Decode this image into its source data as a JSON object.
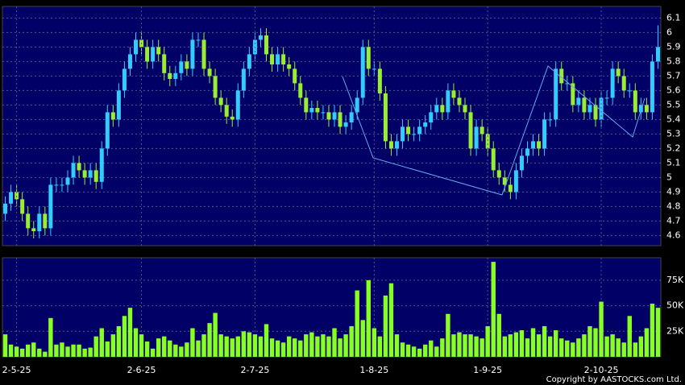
{
  "chart_data": [
    {
      "type": "candlestick",
      "open": [
        4.75,
        4.82,
        4.9,
        4.85,
        4.75,
        4.65,
        4.63,
        4.75,
        4.65,
        4.95,
        4.95,
        4.95,
        5.0,
        5.1,
        5.05,
        5.0,
        5.05,
        4.97,
        5.2,
        5.45,
        5.4,
        5.6,
        5.75,
        5.85,
        5.95,
        5.9,
        5.8,
        5.9,
        5.85,
        5.72,
        5.68,
        5.72,
        5.8,
        5.75,
        5.95,
        5.95,
        5.75,
        5.7,
        5.55,
        5.5,
        5.42,
        5.4,
        5.6,
        5.75,
        5.85,
        5.95,
        5.98,
        5.85,
        5.78,
        5.85,
        5.78,
        5.75,
        5.65,
        5.55,
        5.45,
        5.48,
        5.45,
        5.45,
        5.4,
        5.45,
        5.35,
        5.38,
        5.45,
        5.55,
        5.9,
        5.75,
        5.75,
        5.58,
        5.25,
        5.2,
        5.25,
        5.35,
        5.3,
        5.3,
        5.35,
        5.38,
        5.45,
        5.5,
        5.45,
        5.6,
        5.55,
        5.5,
        5.45,
        5.2,
        5.35,
        5.3,
        5.2,
        5.05,
        5.0,
        4.95,
        4.9,
        5.05,
        5.15,
        5.2,
        5.25,
        5.2,
        5.4,
        5.4,
        5.75,
        5.65,
        5.65,
        5.5,
        5.55,
        5.45,
        5.5,
        5.4,
        5.55,
        5.55,
        5.75,
        5.7,
        5.6,
        5.6,
        5.45,
        5.5,
        5.45,
        5.8
      ],
      "high": [
        4.87,
        4.95,
        4.95,
        4.9,
        4.8,
        4.7,
        4.8,
        4.8,
        5.0,
        5.0,
        5.0,
        5.05,
        5.15,
        5.15,
        5.1,
        5.1,
        5.1,
        5.25,
        5.5,
        5.5,
        5.65,
        5.8,
        5.9,
        6.0,
        6.0,
        5.95,
        5.95,
        5.95,
        5.9,
        5.77,
        5.77,
        5.85,
        5.85,
        6.0,
        6.0,
        6.0,
        5.8,
        5.75,
        5.6,
        5.55,
        5.47,
        5.65,
        5.8,
        5.9,
        6.0,
        6.03,
        6.03,
        5.9,
        5.9,
        5.9,
        5.83,
        5.8,
        5.7,
        5.6,
        5.53,
        5.53,
        5.5,
        5.5,
        5.5,
        5.5,
        5.43,
        5.5,
        5.6,
        5.95,
        5.95,
        5.8,
        5.8,
        5.63,
        5.3,
        5.3,
        5.4,
        5.4,
        5.35,
        5.4,
        5.43,
        5.5,
        5.55,
        5.55,
        5.65,
        5.65,
        5.6,
        5.55,
        5.5,
        5.4,
        5.4,
        5.35,
        5.25,
        5.1,
        5.05,
        5.0,
        5.1,
        5.2,
        5.25,
        5.3,
        5.3,
        5.45,
        5.45,
        5.8,
        5.8,
        5.7,
        5.7,
        5.6,
        5.6,
        5.55,
        5.55,
        5.6,
        5.6,
        5.8,
        5.8,
        5.75,
        5.65,
        5.65,
        5.55,
        5.55,
        5.85,
        6.05
      ],
      "low": [
        4.7,
        4.77,
        4.8,
        4.7,
        4.6,
        4.58,
        4.58,
        4.6,
        4.6,
        4.9,
        4.9,
        4.9,
        4.95,
        5.0,
        4.95,
        4.95,
        4.92,
        4.92,
        5.15,
        5.35,
        5.35,
        5.55,
        5.7,
        5.8,
        5.85,
        5.75,
        5.75,
        5.8,
        5.67,
        5.63,
        5.63,
        5.67,
        5.7,
        5.7,
        5.9,
        5.7,
        5.65,
        5.5,
        5.45,
        5.37,
        5.35,
        5.35,
        5.55,
        5.7,
        5.8,
        5.9,
        5.8,
        5.73,
        5.73,
        5.73,
        5.7,
        5.6,
        5.5,
        5.4,
        5.4,
        5.4,
        5.4,
        5.35,
        5.35,
        5.3,
        5.3,
        5.33,
        5.4,
        5.5,
        5.7,
        5.7,
        5.53,
        5.2,
        5.15,
        5.15,
        5.2,
        5.25,
        5.25,
        5.25,
        5.3,
        5.33,
        5.4,
        5.4,
        5.4,
        5.5,
        5.45,
        5.4,
        5.15,
        5.15,
        5.25,
        5.15,
        5.0,
        4.95,
        4.9,
        4.85,
        4.85,
        5.0,
        5.1,
        5.15,
        5.15,
        5.15,
        5.35,
        5.35,
        5.6,
        5.6,
        5.45,
        5.45,
        5.4,
        5.4,
        5.35,
        5.35,
        5.5,
        5.5,
        5.65,
        5.55,
        5.55,
        5.4,
        5.4,
        5.4,
        5.4,
        5.75
      ],
      "close": [
        4.82,
        4.9,
        4.85,
        4.75,
        4.65,
        4.63,
        4.75,
        4.65,
        4.95,
        4.95,
        4.95,
        5.0,
        5.1,
        5.05,
        5.0,
        5.05,
        4.97,
        5.2,
        5.45,
        5.4,
        5.6,
        5.75,
        5.85,
        5.95,
        5.9,
        5.8,
        5.9,
        5.85,
        5.72,
        5.68,
        5.72,
        5.8,
        5.75,
        5.95,
        5.95,
        5.75,
        5.7,
        5.55,
        5.5,
        5.42,
        5.4,
        5.6,
        5.75,
        5.85,
        5.95,
        5.98,
        5.85,
        5.78,
        5.85,
        5.78,
        5.75,
        5.65,
        5.55,
        5.45,
        5.48,
        5.45,
        5.45,
        5.4,
        5.45,
        5.35,
        5.38,
        5.45,
        5.55,
        5.9,
        5.75,
        5.75,
        5.58,
        5.25,
        5.2,
        5.25,
        5.35,
        5.3,
        5.3,
        5.35,
        5.38,
        5.45,
        5.5,
        5.45,
        5.6,
        5.55,
        5.5,
        5.45,
        5.2,
        5.35,
        5.3,
        5.2,
        5.05,
        5.0,
        4.95,
        4.9,
        5.05,
        5.15,
        5.2,
        5.25,
        5.2,
        5.4,
        5.4,
        5.75,
        5.65,
        5.65,
        5.5,
        5.55,
        5.45,
        5.5,
        5.4,
        5.55,
        5.55,
        5.75,
        5.7,
        5.6,
        5.6,
        5.45,
        5.5,
        5.45,
        5.8,
        5.9
      ],
      "up_color": "#33ccff",
      "down_color": "#99ee33",
      "ylim": [
        4.53,
        6.18
      ],
      "yticks": [
        4.6,
        4.7,
        4.8,
        4.9,
        5,
        5.1,
        5.2,
        5.3,
        5.4,
        5.5,
        5.6,
        5.7,
        5.8,
        5.9,
        6,
        6.1
      ],
      "grid": true
    },
    {
      "type": "bar",
      "categories": [
        null,
        null,
        "2-5-25",
        null,
        null,
        null,
        null,
        null,
        null,
        null,
        null,
        null,
        null,
        null,
        null,
        null,
        null,
        null,
        null,
        null,
        null,
        null,
        null,
        null,
        "2-6-25",
        null,
        null,
        null,
        null,
        null,
        null,
        null,
        null,
        null,
        null,
        null,
        null,
        null,
        null,
        null,
        null,
        null,
        null,
        null,
        "2-7-25",
        null,
        null,
        null,
        null,
        null,
        null,
        null,
        null,
        null,
        null,
        null,
        null,
        null,
        null,
        null,
        null,
        null,
        null,
        null,
        null,
        "1-8-25",
        null,
        null,
        null,
        null,
        null,
        null,
        null,
        null,
        null,
        null,
        null,
        null,
        null,
        null,
        null,
        null,
        null,
        null,
        null,
        "1-9-25",
        null,
        null,
        null,
        null,
        null,
        null,
        null,
        null,
        null,
        null,
        null,
        null,
        null,
        null,
        null,
        null,
        null,
        null,
        null,
        "2-10-25",
        null,
        null,
        null,
        null,
        null,
        null,
        null,
        null,
        null,
        null
      ],
      "values": [
        22000,
        12000,
        10000,
        8000,
        12000,
        14000,
        8000,
        5000,
        38000,
        12000,
        14000,
        10000,
        12000,
        12000,
        8000,
        9000,
        20000,
        28000,
        15000,
        22000,
        30000,
        40000,
        48000,
        28000,
        22000,
        15000,
        8000,
        18000,
        20000,
        16000,
        12000,
        10000,
        14000,
        28000,
        16000,
        22000,
        33000,
        43000,
        22000,
        20000,
        18000,
        20000,
        25000,
        24000,
        22000,
        20000,
        32000,
        18000,
        16000,
        14000,
        20000,
        18000,
        16000,
        22000,
        24000,
        20000,
        22000,
        20000,
        28000,
        18000,
        22000,
        30000,
        65000,
        36000,
        75000,
        28000,
        20000,
        60000,
        72000,
        22000,
        14000,
        12000,
        10000,
        8000,
        12000,
        16000,
        10000,
        18000,
        42000,
        22000,
        24000,
        22000,
        22000,
        20000,
        18000,
        30000,
        93000,
        42000,
        20000,
        22000,
        24000,
        26000,
        18000,
        28000,
        22000,
        30000,
        20000,
        26000,
        18000,
        16000,
        14000,
        18000,
        22000,
        30000,
        28000,
        54000,
        20000,
        22000,
        18000,
        14000,
        40000,
        14000,
        20000,
        28000,
        52000,
        48000
      ],
      "color": "#88ff22",
      "ylim": [
        0,
        97000
      ],
      "yticks": [
        {
          "value": 25000,
          "label": "25K"
        },
        {
          "value": 50000,
          "label": "50K"
        },
        {
          "value": 75000,
          "label": "75K"
        }
      ],
      "grid": true
    }
  ],
  "copyright": "Copyright by AASTOCKS.com Ltd."
}
